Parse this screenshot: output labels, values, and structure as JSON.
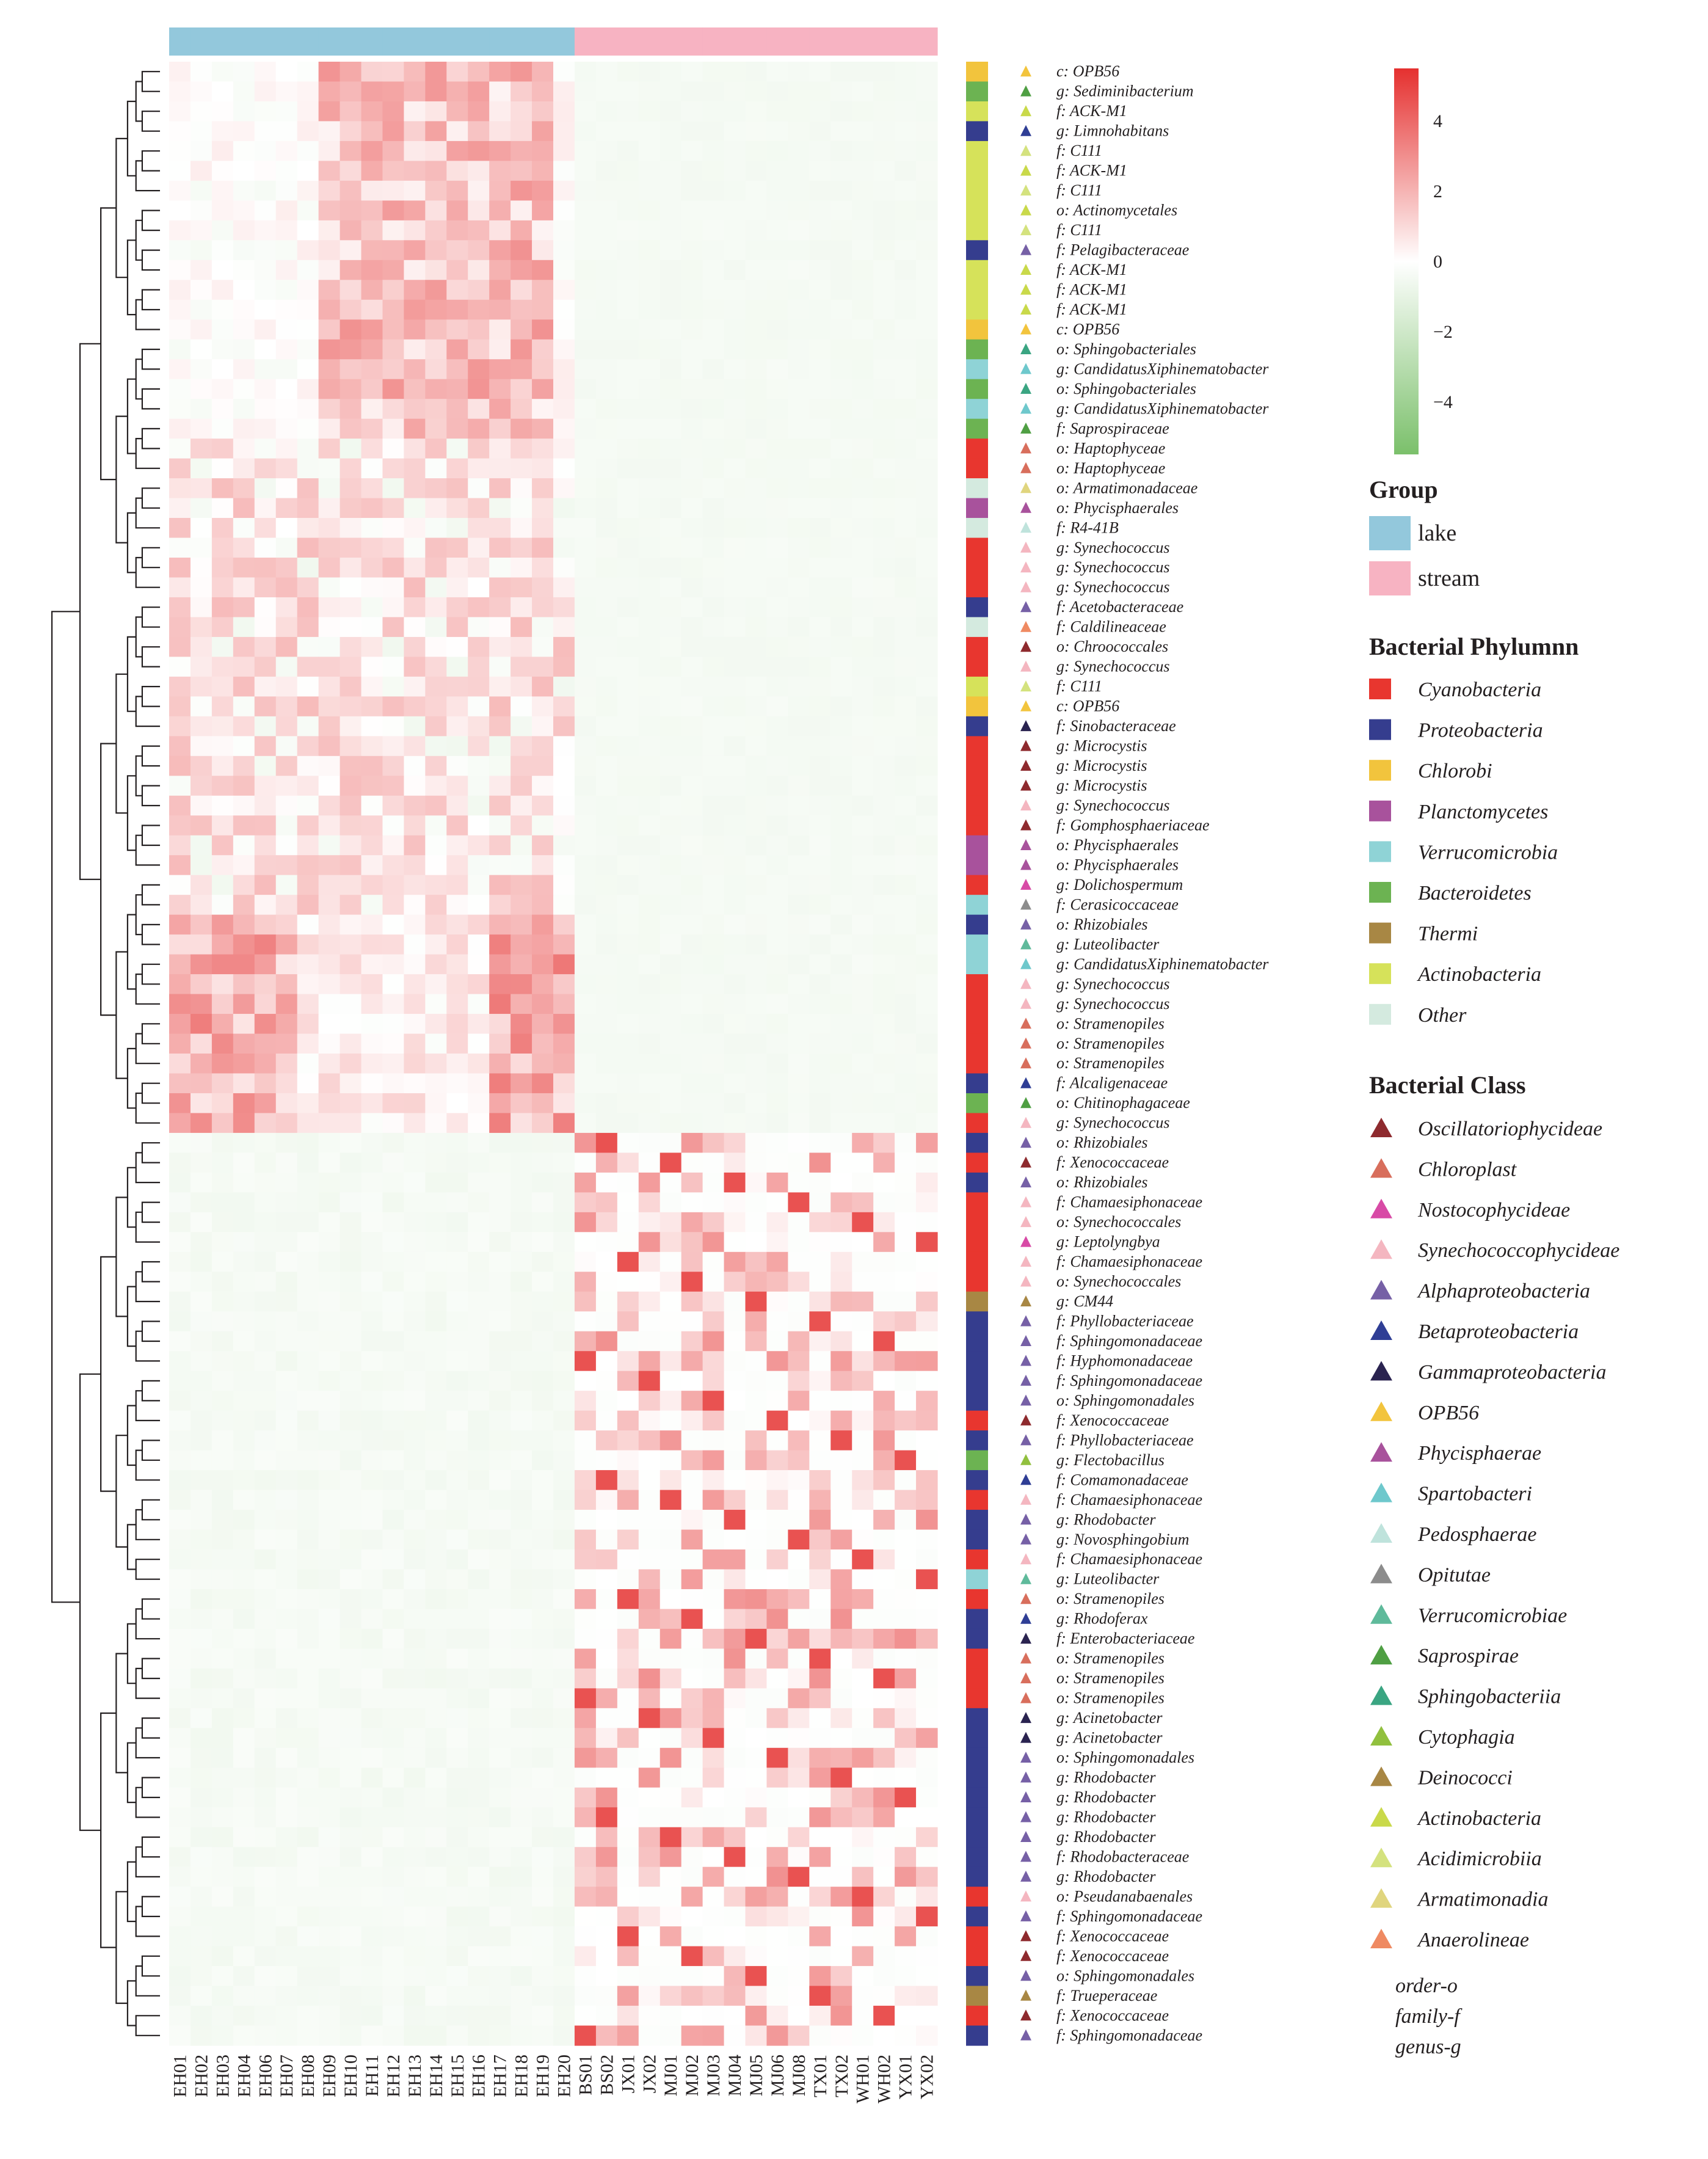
{
  "chart_data": {
    "type": "heatmap",
    "title": "",
    "rows": 100,
    "samples": [
      "EH01",
      "EH02",
      "EH03",
      "EH04",
      "EH06",
      "EH07",
      "EH08",
      "EH09",
      "EH10",
      "EH11",
      "EH12",
      "EH13",
      "EH14",
      "EH15",
      "EH16",
      "EH17",
      "EH18",
      "EH19",
      "EH20",
      "BS01",
      "BS02",
      "JX01",
      "JX02",
      "MJ01",
      "MJ02",
      "MJ03",
      "MJ04",
      "MJ05",
      "MJ06",
      "MJ08",
      "TX01",
      "TX02",
      "WH01",
      "WH02",
      "YX01",
      "YX02"
    ],
    "sample_group": [
      "lake",
      "lake",
      "lake",
      "lake",
      "lake",
      "lake",
      "lake",
      "lake",
      "lake",
      "lake",
      "lake",
      "lake",
      "lake",
      "lake",
      "lake",
      "lake",
      "lake",
      "lake",
      "lake",
      "stream",
      "stream",
      "stream",
      "stream",
      "stream",
      "stream",
      "stream",
      "stream",
      "stream",
      "stream",
      "stream",
      "stream",
      "stream",
      "stream",
      "stream",
      "stream",
      "stream"
    ],
    "taxa": [
      "c: OPB56",
      "g: Sediminibacterium",
      "f: ACK-M1",
      "g: Limnohabitans",
      "f: C111",
      "f: ACK-M1",
      "f: C111",
      "o: Actinomycetales",
      "f: C111",
      "f: Pelagibacteraceae",
      "f: ACK-M1",
      "f: ACK-M1",
      "f: ACK-M1",
      "c: OPB56",
      "o: Sphingobacteriales",
      "g: CandidatusXiphinematobacter",
      "o: Sphingobacteriales",
      "g: CandidatusXiphinematobacter",
      "f: Saprospiraceae",
      "o: Haptophyceae",
      "o: Haptophyceae",
      "o: Armatimonadaceae",
      "o: Phycisphaerales",
      "f: R4-41B",
      "g: Synechococcus",
      "g: Synechococcus",
      "g: Synechococcus",
      "f: Acetobacteraceae",
      "f: Caldilineaceae",
      "o: Chroococcales",
      "g: Synechococcus",
      "f: C111",
      "c: OPB56",
      "f: Sinobacteraceae",
      "g: Microcystis",
      "g: Microcystis",
      "g: Microcystis",
      "g: Synechococcus",
      "f: Gomphosphaeriaceae",
      "o: Phycisphaerales",
      "o: Phycisphaerales",
      "g: Dolichospermum",
      "f: Cerasicoccaceae",
      "o: Rhizobiales",
      "g: Luteolibacter",
      "g: CandidatusXiphinematobacter",
      "g: Synechococcus",
      "g: Synechococcus",
      "o: Stramenopiles",
      "o: Stramenopiles",
      "o: Stramenopiles",
      "f: Alcaligenaceae",
      "o: Chitinophagaceae",
      "g: Synechococcus",
      "o: Rhizobiales",
      "f: Xenococcaceae",
      "o: Rhizobiales",
      "f: Chamaesiphonaceae",
      "o: Synechococcales",
      "g: Leptolyngbya",
      "f: Chamaesiphonaceae",
      "o: Synechococcales",
      "g: CM44",
      "f: Phyllobacteriaceae",
      "f: Sphingomonadaceae",
      "f: Hyphomonadaceae",
      "f: Sphingomonadaceae",
      "o: Sphingomonadales",
      "f: Xenococcaceae",
      "f: Phyllobacteriaceae",
      "g: Flectobacillus",
      "f: Comamonadaceae",
      "f: Chamaesiphonaceae",
      "g: Rhodobacter",
      "g: Novosphingobium",
      "f: Chamaesiphonaceae",
      "g: Luteolibacter",
      "o: Stramenopiles",
      "g: Rhodoferax",
      "f: Enterobacteriaceae",
      "o: Stramenopiles",
      "o: Stramenopiles",
      "o: Stramenopiles",
      "g: Acinetobacter",
      "g: Acinetobacter",
      "o: Sphingomonadales",
      "g: Rhodobacter",
      "g: Rhodobacter",
      "g: Rhodobacter",
      "g: Rhodobacter",
      "f: Rhodobacteraceae",
      "g: Rhodobacter",
      "o: Pseudanabaenales",
      "f: Sphingomonadaceae",
      "f: Xenococcaceae",
      "f: Xenococcaceae",
      "o: Sphingomonadales",
      "f: Trueperaceae",
      "f: Xenococcaceae",
      "f: Sphingomonadaceae"
    ],
    "row_phylum": [
      "Chlorobi",
      "Bacteroidetes",
      "Actinobacteria",
      "Proteobacteria",
      "Actinobacteria",
      "Actinobacteria",
      "Actinobacteria",
      "Actinobacteria",
      "Actinobacteria",
      "Proteobacteria",
      "Actinobacteria",
      "Actinobacteria",
      "Actinobacteria",
      "Chlorobi",
      "Bacteroidetes",
      "Verrucomicrobia",
      "Bacteroidetes",
      "Verrucomicrobia",
      "Bacteroidetes",
      "Cyanobacteria",
      "Cyanobacteria",
      "Other",
      "Planctomycetes",
      "Other",
      "Cyanobacteria",
      "Cyanobacteria",
      "Cyanobacteria",
      "Proteobacteria",
      "Other",
      "Cyanobacteria",
      "Cyanobacteria",
      "Actinobacteria",
      "Chlorobi",
      "Proteobacteria",
      "Cyanobacteria",
      "Cyanobacteria",
      "Cyanobacteria",
      "Cyanobacteria",
      "Cyanobacteria",
      "Planctomycetes",
      "Planctomycetes",
      "Cyanobacteria",
      "Verrucomicrobia",
      "Proteobacteria",
      "Verrucomicrobia",
      "Verrucomicrobia",
      "Cyanobacteria",
      "Cyanobacteria",
      "Cyanobacteria",
      "Cyanobacteria",
      "Cyanobacteria",
      "Proteobacteria",
      "Bacteroidetes",
      "Cyanobacteria",
      "Proteobacteria",
      "Cyanobacteria",
      "Proteobacteria",
      "Cyanobacteria",
      "Cyanobacteria",
      "Cyanobacteria",
      "Cyanobacteria",
      "Cyanobacteria",
      "Thermi",
      "Proteobacteria",
      "Proteobacteria",
      "Proteobacteria",
      "Proteobacteria",
      "Proteobacteria",
      "Cyanobacteria",
      "Proteobacteria",
      "Bacteroidetes",
      "Proteobacteria",
      "Cyanobacteria",
      "Proteobacteria",
      "Proteobacteria",
      "Cyanobacteria",
      "Verrucomicrobia",
      "Cyanobacteria",
      "Proteobacteria",
      "Proteobacteria",
      "Cyanobacteria",
      "Cyanobacteria",
      "Cyanobacteria",
      "Proteobacteria",
      "Proteobacteria",
      "Proteobacteria",
      "Proteobacteria",
      "Proteobacteria",
      "Proteobacteria",
      "Proteobacteria",
      "Proteobacteria",
      "Proteobacteria",
      "Cyanobacteria",
      "Proteobacteria",
      "Cyanobacteria",
      "Cyanobacteria",
      "Proteobacteria",
      "Thermi",
      "Cyanobacteria",
      "Proteobacteria"
    ],
    "row_class": [
      "OPB56",
      "Saprospirae",
      "Actinobacteria",
      "Betaproteobacteria",
      "Acidimicrobiia",
      "Actinobacteria",
      "Acidimicrobiia",
      "Actinobacteria",
      "Acidimicrobiia",
      "Alphaproteobacteria",
      "Actinobacteria",
      "Actinobacteria",
      "Actinobacteria",
      "OPB56",
      "Sphingobacteriia",
      "Spartobacteri",
      "Sphingobacteriia",
      "Spartobacteri",
      "Saprospirae",
      "Chloroplast",
      "Chloroplast",
      "Armatimonadia",
      "Phycisphaerae",
      "Pedosphaerae",
      "Synechococcophycideae",
      "Synechococcophycideae",
      "Synechococcophycideae",
      "Alphaproteobacteria",
      "Anaerolineae",
      "Oscillatoriophycideae",
      "Synechococcophycideae",
      "Acidimicrobiia",
      "OPB56",
      "Gammaproteobacteria",
      "Oscillatoriophycideae",
      "Oscillatoriophycideae",
      "Oscillatoriophycideae",
      "Synechococcophycideae",
      "Oscillatoriophycideae",
      "Phycisphaerae",
      "Phycisphaerae",
      "Nostocophycideae",
      "Opitutae",
      "Alphaproteobacteria",
      "Verrucomicrobiae",
      "Spartobacteri",
      "Synechococcophycideae",
      "Synechococcophycideae",
      "Chloroplast",
      "Chloroplast",
      "Chloroplast",
      "Betaproteobacteria",
      "Saprospirae",
      "Synechococcophycideae",
      "Alphaproteobacteria",
      "Oscillatoriophycideae",
      "Alphaproteobacteria",
      "Synechococcophycideae",
      "Synechococcophycideae",
      "Nostocophycideae",
      "Synechococcophycideae",
      "Synechococcophycideae",
      "Deinococci",
      "Alphaproteobacteria",
      "Alphaproteobacteria",
      "Alphaproteobacteria",
      "Alphaproteobacteria",
      "Alphaproteobacteria",
      "Oscillatoriophycideae",
      "Alphaproteobacteria",
      "Cytophagia",
      "Betaproteobacteria",
      "Synechococcophycideae",
      "Alphaproteobacteria",
      "Alphaproteobacteria",
      "Synechococcophycideae",
      "Verrucomicrobiae",
      "Chloroplast",
      "Betaproteobacteria",
      "Gammaproteobacteria",
      "Chloroplast",
      "Chloroplast",
      "Chloroplast",
      "Gammaproteobacteria",
      "Gammaproteobacteria",
      "Alphaproteobacteria",
      "Alphaproteobacteria",
      "Alphaproteobacteria",
      "Alphaproteobacteria",
      "Alphaproteobacteria",
      "Alphaproteobacteria",
      "Alphaproteobacteria",
      "Synechococcophycideae",
      "Alphaproteobacteria",
      "Oscillatoriophycideae",
      "Oscillatoriophycideae",
      "Alphaproteobacteria",
      "Deinococci",
      "Oscillatoriophycideae",
      "Alphaproteobacteria"
    ],
    "color_scale": {
      "range": [
        -5.5,
        5.5
      ],
      "ticks": [
        4,
        2,
        0,
        -2,
        -4
      ],
      "tick_labels": [
        "4",
        "2",
        "0",
        "−2",
        "−4"
      ],
      "low_color": "#7bc06b",
      "mid_color": "#ffffff",
      "high_color": "#e5302f"
    },
    "group_legend": {
      "title": "Group",
      "items": [
        {
          "label": "lake",
          "color": "#93c8dc"
        },
        {
          "label": "stream",
          "color": "#f7b3c2"
        }
      ]
    },
    "phylum_legend": {
      "title": "Bacterial Phylumnn",
      "items": [
        {
          "label": "Cyanobacteria",
          "color": "#e8362f"
        },
        {
          "label": "Proteobacteria",
          "color": "#353d8e"
        },
        {
          "label": "Chlorobi",
          "color": "#f2c43d"
        },
        {
          "label": "Planctomycetes",
          "color": "#a8529c"
        },
        {
          "label": "Verrucomicrobia",
          "color": "#8fd3d6"
        },
        {
          "label": "Bacteroidetes",
          "color": "#6cb352"
        },
        {
          "label": "Thermi",
          "color": "#a88744"
        },
        {
          "label": "Actinobacteria",
          "color": "#d6e25a"
        },
        {
          "label": "Other",
          "color": "#d4eadf"
        }
      ]
    },
    "class_legend": {
      "title": "Bacterial Class",
      "items": [
        {
          "label": "Oscillatoriophycideae",
          "color": "#8e2a2e"
        },
        {
          "label": "Chloroplast",
          "color": "#d86e5c"
        },
        {
          "label": "Nostocophycideae",
          "color": "#d84aa6"
        },
        {
          "label": "Synechococcophycideae",
          "color": "#f4b6c0"
        },
        {
          "label": "Alphaproteobacteria",
          "color": "#7660a6"
        },
        {
          "label": "Betaproteobacteria",
          "color": "#2f3e95"
        },
        {
          "label": "Gammaproteobacteria",
          "color": "#2a2350"
        },
        {
          "label": "OPB56",
          "color": "#f2c43d"
        },
        {
          "label": "Phycisphaerae",
          "color": "#a8529c"
        },
        {
          "label": "Spartobacteri",
          "color": "#6ec8cc"
        },
        {
          "label": "Pedosphaerae",
          "color": "#bfe3dc"
        },
        {
          "label": "Opitutae",
          "color": "#8c8c8c"
        },
        {
          "label": "Verrucomicrobiae",
          "color": "#5fba9b"
        },
        {
          "label": "Saprospirae",
          "color": "#4f9f43"
        },
        {
          "label": "Sphingobacteriia",
          "color": "#3aa582"
        },
        {
          "label": "Cytophagia",
          "color": "#91c03e"
        },
        {
          "label": "Deinococci",
          "color": "#a88744"
        },
        {
          "label": "Actinobacteria",
          "color": "#c9d94a"
        },
        {
          "label": "Acidimicrobiia",
          "color": "#d4e27e"
        },
        {
          "label": "Armatimonadia",
          "color": "#e0d57e"
        },
        {
          "label": "Anaerolineae",
          "color": "#ef8a62"
        }
      ]
    },
    "rank_key": [
      "order-o",
      "family-f",
      "genus-g"
    ]
  }
}
